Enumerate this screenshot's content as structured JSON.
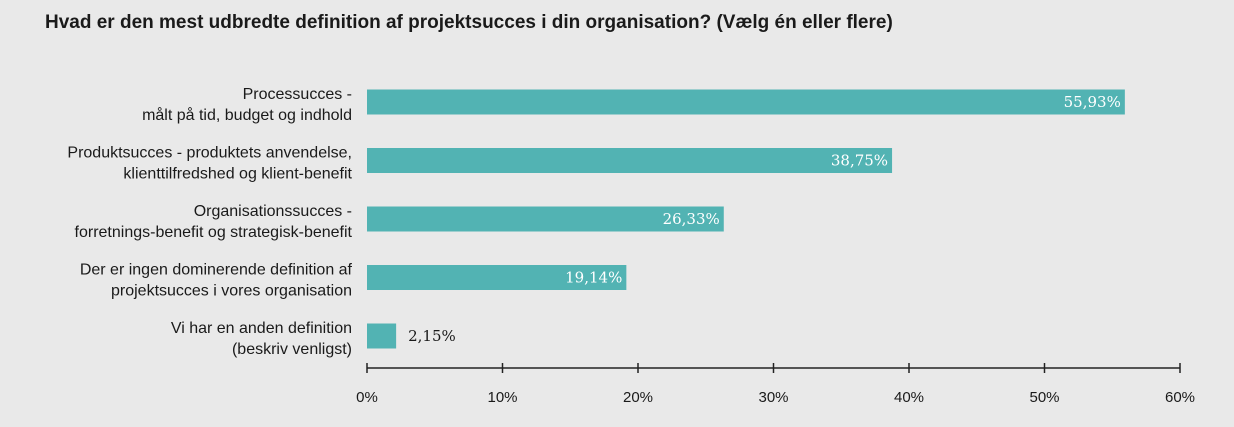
{
  "chart_data": {
    "type": "bar",
    "orientation": "horizontal",
    "title": "Hvad er den mest udbredte definition af projektsucces i din organisation? (Vælg én eller flere)",
    "categories": [
      [
        "Processucces -",
        "målt på tid, budget og indhold"
      ],
      [
        "Produktsucces - produktets anvendelse,",
        "klienttilfredshed og klient-benefit"
      ],
      [
        "Organisationssucces -",
        "forretnings-benefit og strategisk-benefit"
      ],
      [
        "Der er ingen dominerende definition af",
        "projektsucces i vores organisation"
      ],
      [
        "Vi har en anden definition",
        "(beskriv venligst)"
      ]
    ],
    "values": [
      55.93,
      38.75,
      26.33,
      19.14,
      2.15
    ],
    "value_labels": [
      "55,93%",
      "38,75%",
      "26,33%",
      "19,14%",
      "2,15%"
    ],
    "xlim": [
      0,
      60
    ],
    "ticks": [
      0,
      10,
      20,
      30,
      40,
      50,
      60
    ],
    "tick_labels": [
      "0%",
      "10%",
      "20%",
      "30%",
      "40%",
      "50%",
      "60%"
    ],
    "grid": false,
    "legend": "none",
    "colors": {
      "bar": "#52b3b3",
      "axis": "#222222",
      "label_inside": "#ffffff",
      "label_outside": "#1a1a1a",
      "background": "#e9e9e9"
    }
  }
}
